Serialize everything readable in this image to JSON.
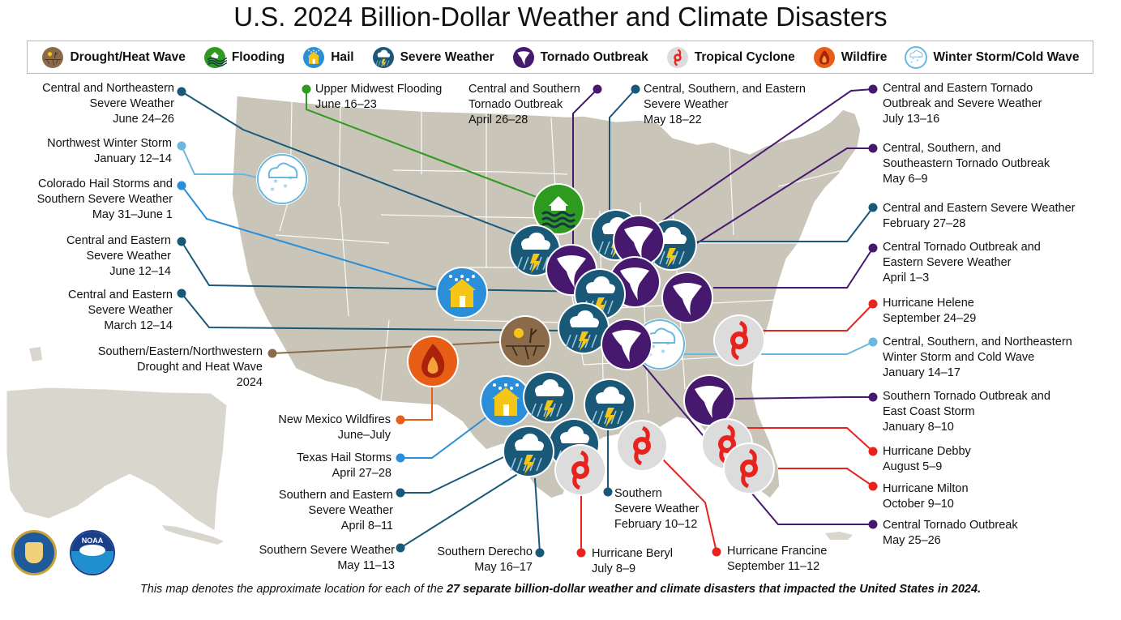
{
  "title": "U.S. 2024 Billion-Dollar Weather and Climate Disasters",
  "colors": {
    "drought": "#8b6a4a",
    "flooding": "#2e9a1f",
    "hail": "#2a8fd8",
    "severe": "#1a5878",
    "tornado": "#46186e",
    "tropical": "#dcdcdc",
    "tropical_line": "#e8231e",
    "wildfire": "#e85e16",
    "winter": "#6ab7e0",
    "land": "#c9c5b9",
    "state_border": "#ffffff"
  },
  "legend": [
    {
      "icon": "drought-icon",
      "label": "Drought/Heat Wave"
    },
    {
      "icon": "flooding-icon",
      "label": "Flooding"
    },
    {
      "icon": "hail-icon",
      "label": "Hail"
    },
    {
      "icon": "severe-weather-icon",
      "label": "Severe Weather"
    },
    {
      "icon": "tornado-icon",
      "label": "Tornado Outbreak"
    },
    {
      "icon": "tropical-cyclone-icon",
      "label": "Tropical Cyclone"
    },
    {
      "icon": "wildfire-icon",
      "label": "Wildfire"
    },
    {
      "icon": "winter-storm-icon",
      "label": "Winter Storm/Cold Wave"
    }
  ],
  "events": {
    "ne_severe": {
      "lines": [
        "Central and Northeastern",
        "Severe Weather",
        "June 24–26"
      ]
    },
    "nw_winter": {
      "lines": [
        "Northwest Winter Storm",
        "January 12–14"
      ]
    },
    "co_hail": {
      "lines": [
        "Colorado Hail Storms and",
        "Southern Severe Weather",
        "May 31–June 1"
      ]
    },
    "ce_severe_june": {
      "lines": [
        "Central and Eastern",
        "Severe Weather",
        "June 12–14"
      ]
    },
    "ce_severe_march": {
      "lines": [
        "Central and Eastern",
        "Severe Weather",
        "March 12–14"
      ]
    },
    "drought": {
      "lines": [
        "Southern/Eastern/Northwestern",
        "Drought and Heat Wave",
        "2024"
      ]
    },
    "nm_wildfire": {
      "lines": [
        "New Mexico Wildfires",
        "June–July"
      ]
    },
    "tx_hail": {
      "lines": [
        "Texas Hail Storms",
        "April 27–28"
      ]
    },
    "se_severe_april": {
      "lines": [
        "Southern and Eastern",
        "Severe Weather",
        "April 8–11"
      ]
    },
    "s_severe_may": {
      "lines": [
        "Southern Severe Weather",
        "May 11–13"
      ]
    },
    "derecho": {
      "lines": [
        "Southern Derecho",
        "May 16–17"
      ]
    },
    "beryl": {
      "lines": [
        "Hurricane Beryl",
        "July 8–9"
      ]
    },
    "s_severe_feb": {
      "lines": [
        "Southern",
        "Severe Weather",
        "February 10–12"
      ]
    },
    "francine": {
      "lines": [
        "Hurricane Francine",
        "September 11–12"
      ]
    },
    "upper_mw_flood": {
      "lines": [
        "Upper Midwest Flooding",
        "June 16–23"
      ]
    },
    "cs_tornado_april": {
      "lines": [
        "Central and Southern",
        "Tornado Outbreak",
        "April 26–28"
      ]
    },
    "cse_severe_may": {
      "lines": [
        "Central, Southern, and Eastern",
        "Severe Weather",
        "May 18–22"
      ]
    },
    "ce_tornado_july": {
      "lines": [
        "Central and Eastern Tornado",
        "Outbreak and Severe Weather",
        "July 13–16"
      ]
    },
    "css_tornado_may": {
      "lines": [
        "Central, Southern, and",
        "Southeastern Tornado Outbreak",
        "May 6–9"
      ]
    },
    "ce_severe_feb": {
      "lines": [
        "Central and Eastern Severe Weather",
        "February 27–28"
      ]
    },
    "c_tornado_april": {
      "lines": [
        "Central Tornado Outbreak and",
        "Eastern Severe Weather",
        "April 1–3"
      ]
    },
    "helene": {
      "lines": [
        "Hurricane Helene",
        "September 24–29"
      ]
    },
    "csn_winter": {
      "lines": [
        "Central, Southern, and Northeastern",
        "Winter Storm and Cold Wave",
        "January 14–17"
      ]
    },
    "s_tornado_jan": {
      "lines": [
        "Southern Tornado Outbreak and",
        "East Coast Storm",
        "January 8–10"
      ]
    },
    "debby": {
      "lines": [
        "Hurricane Debby",
        "August 5–9"
      ]
    },
    "milton": {
      "lines": [
        "Hurricane Milton",
        "October 9–10"
      ]
    },
    "c_tornado_may": {
      "lines": [
        "Central Tornado Outbreak",
        "May 25–26"
      ]
    }
  },
  "footnote": {
    "pre": "This map denotes the approximate location for each of the ",
    "bold": "27 separate billion-dollar weather and climate disasters that impacted the United States in 2024."
  },
  "seals": {
    "left": "seal-icon",
    "right": "noaa-logo-icon",
    "right_text": "NOAA"
  }
}
